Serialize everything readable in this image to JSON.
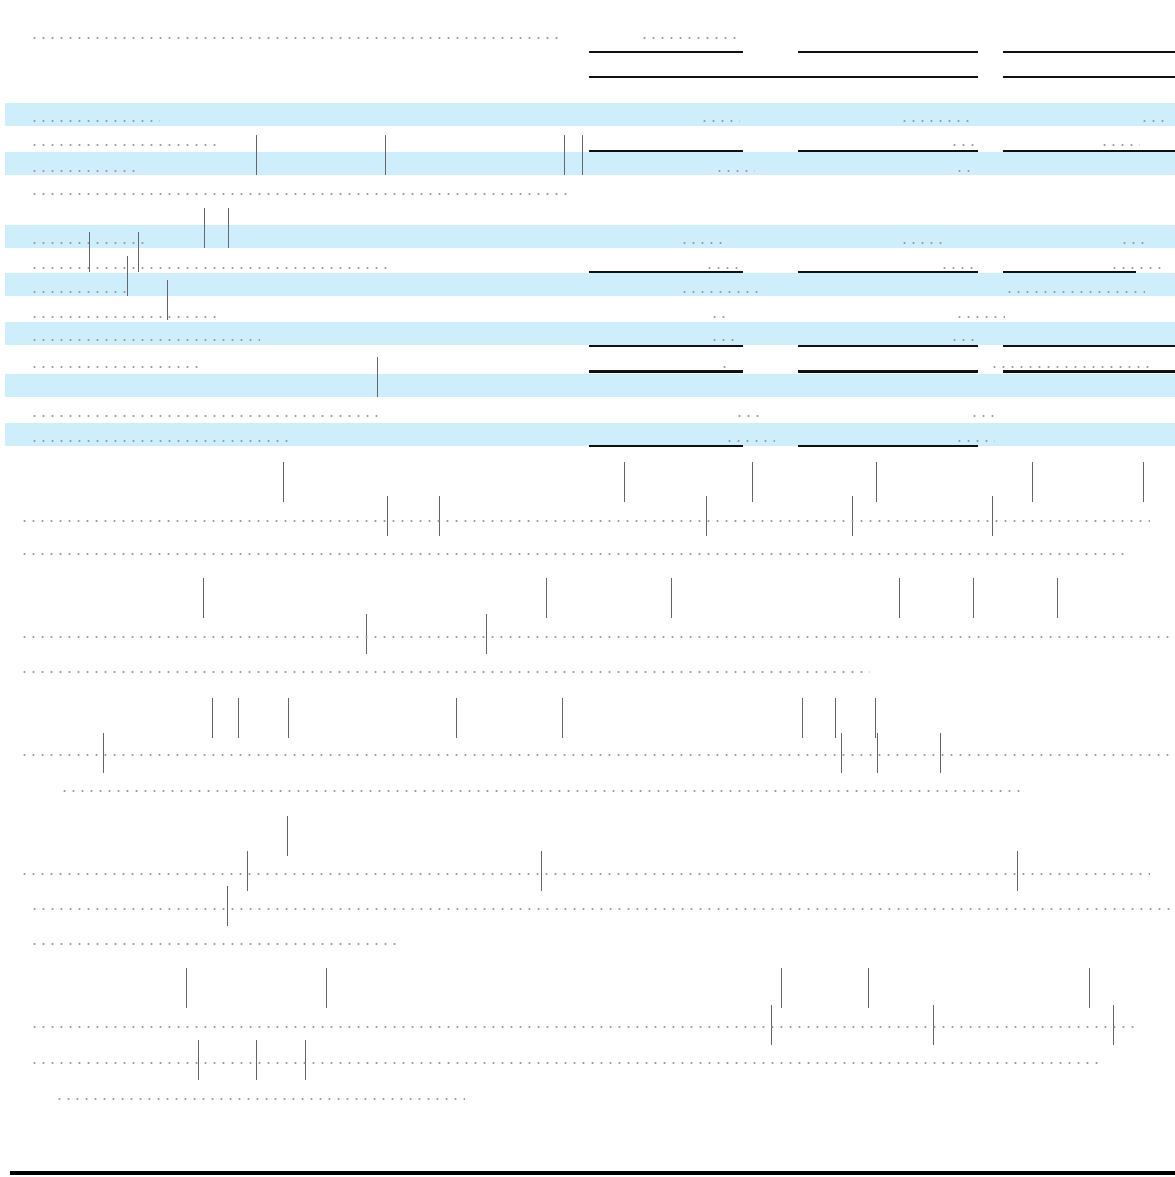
{
  "colors": {
    "row_band": "#cfeefb",
    "rule": "#111111",
    "faint_text": "#9a9a9a"
  },
  "table": {
    "header_labels": [
      "",
      "",
      ""
    ],
    "rows": [
      {
        "label": "",
        "values": [
          "",
          "",
          ""
        ],
        "shaded": true
      },
      {
        "label": "",
        "values": [
          "",
          "",
          ""
        ],
        "shaded": false
      },
      {
        "label": "",
        "values": [
          "",
          "",
          ""
        ],
        "shaded": true
      },
      {
        "label": "",
        "values": [
          "",
          "",
          ""
        ],
        "shaded": false
      },
      {
        "label": "",
        "values": [
          "",
          "",
          ""
        ],
        "shaded": true
      },
      {
        "label": "",
        "values": [
          "",
          "",
          ""
        ],
        "shaded": false
      },
      {
        "label": "",
        "values": [
          "",
          "",
          ""
        ],
        "shaded": true
      },
      {
        "label": "",
        "values": [
          "",
          "",
          ""
        ],
        "shaded": false
      },
      {
        "label": "",
        "values": [
          "",
          "",
          ""
        ],
        "shaded": true
      },
      {
        "label": "",
        "values": [
          "",
          "",
          ""
        ],
        "shaded": false
      },
      {
        "label": "",
        "values": [
          "",
          "",
          ""
        ],
        "shaded": true
      },
      {
        "label": "",
        "values": [
          "",
          "",
          ""
        ],
        "shaded": false
      },
      {
        "label": "",
        "values": [
          "",
          "",
          ""
        ],
        "shaded": true
      }
    ]
  },
  "paragraphs": [
    "",
    "",
    "",
    "",
    "",
    "",
    "",
    ""
  ]
}
